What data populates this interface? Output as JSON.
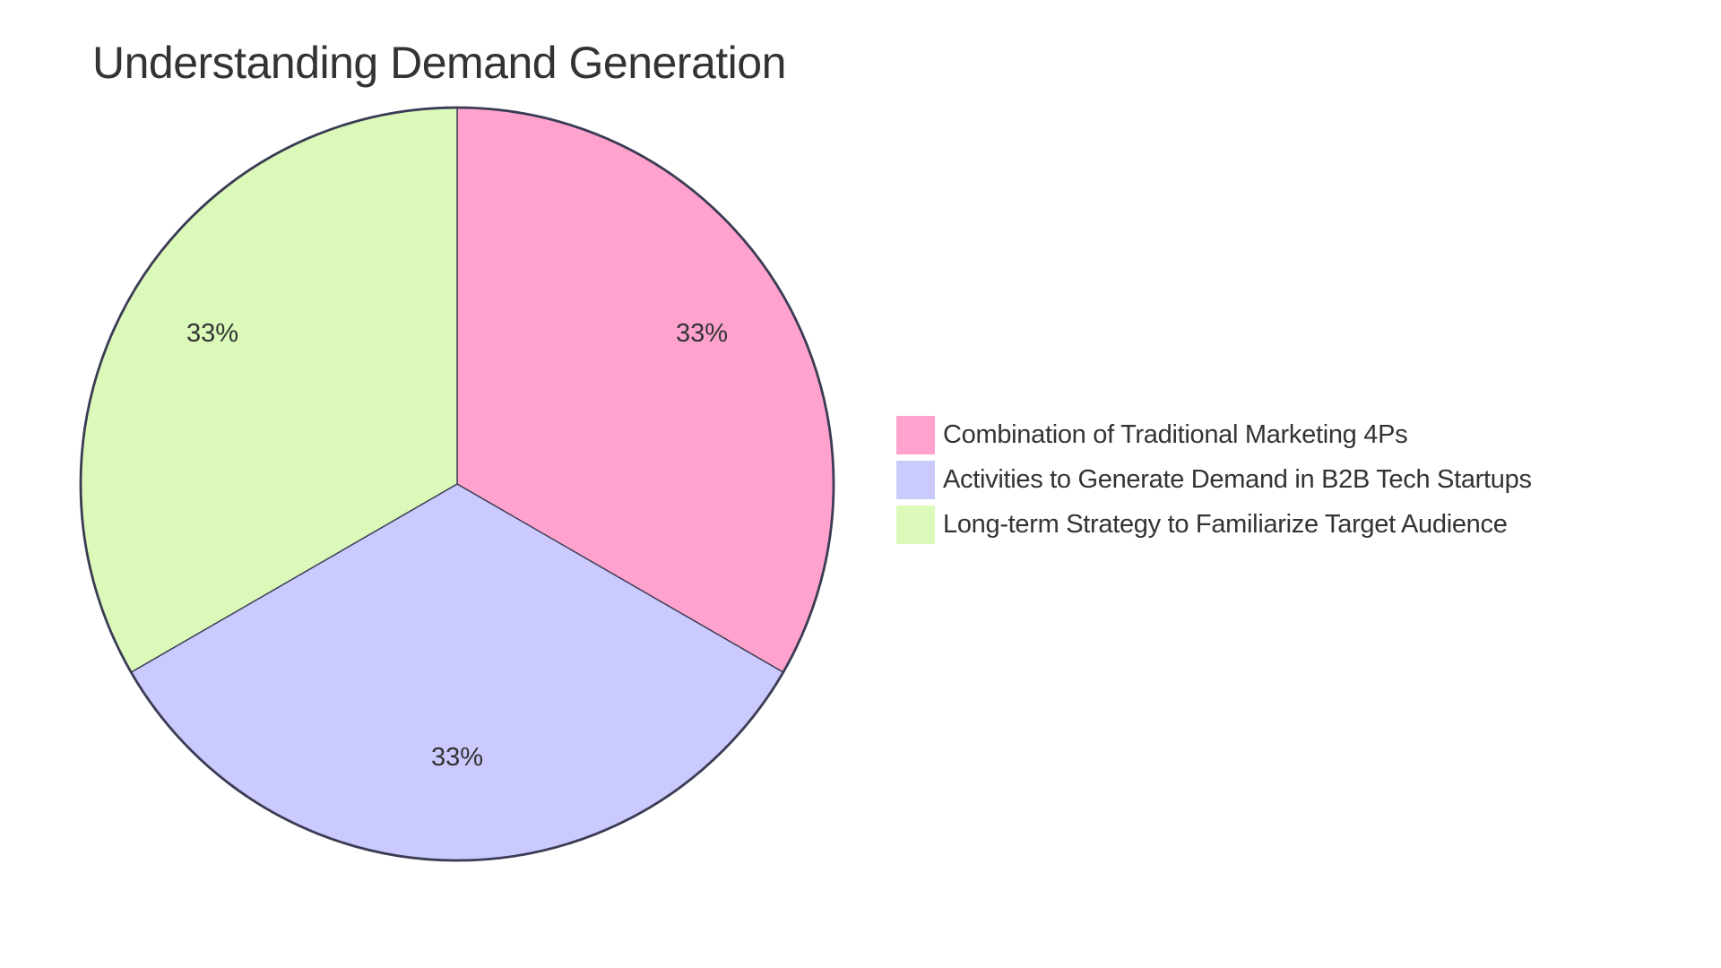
{
  "title": "Understanding Demand Generation",
  "chart_data": {
    "type": "pie",
    "title": "Understanding Demand Generation",
    "categories": [
      "Combination of Traditional Marketing 4Ps",
      "Activities to Generate Demand in B2B Tech Startups",
      "Long-term Strategy to Familiarize Target Audience"
    ],
    "values": [
      33.33,
      33.33,
      33.33
    ],
    "labels": [
      "33%",
      "33%",
      "33%"
    ],
    "colors": [
      "#FFA3CE",
      "#CACAFE",
      "#DBFAB9"
    ],
    "legend_position": "right",
    "start_angle_deg": 0,
    "direction": "clockwise"
  },
  "legend": {
    "items": [
      {
        "label": "Combination of Traditional Marketing 4Ps",
        "color": "#FFA3CE"
      },
      {
        "label": "Activities to Generate Demand in B2B Tech Startups",
        "color": "#CACAFE"
      },
      {
        "label": "Long-term Strategy to Familiarize Target Audience",
        "color": "#DBFAB9"
      }
    ]
  },
  "slice_labels": [
    "33%",
    "33%",
    "33%"
  ],
  "style": {
    "stroke": "#3B3B54",
    "text": "#333333"
  }
}
